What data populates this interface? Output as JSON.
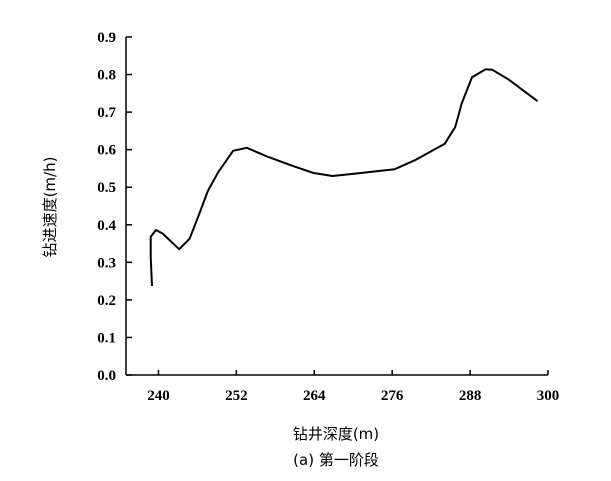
{
  "chart_data": {
    "type": "line",
    "title": "",
    "caption": "(a) 第一阶段",
    "xlabel": "钻井深度(m)",
    "ylabel": "钻进速度(m/h)",
    "xlim": [
      235,
      300
    ],
    "ylim": [
      0,
      0.9
    ],
    "xticks": [
      240,
      252,
      264,
      276,
      288,
      300
    ],
    "yticks": [
      "0.0",
      "0.1",
      "0.2",
      "0.3",
      "0.4",
      "0.5",
      "0.6",
      "0.7",
      "0.8",
      "0.9"
    ],
    "grid": false,
    "line_color": "#000000",
    "x": [
      239.0,
      238.8,
      238.8,
      239.6,
      240.6,
      243.2,
      244.8,
      246.3,
      247.6,
      249.2,
      251.5,
      253.6,
      256.7,
      260.8,
      263.9,
      266.8,
      271.2,
      276.4,
      279.5,
      284.1,
      285.7,
      286.7,
      288.3,
      290.4,
      291.4,
      294.0,
      298.4
    ],
    "y": [
      0.237,
      0.315,
      0.368,
      0.386,
      0.377,
      0.335,
      0.363,
      0.43,
      0.49,
      0.54,
      0.597,
      0.605,
      0.582,
      0.556,
      0.538,
      0.53,
      0.538,
      0.548,
      0.572,
      0.616,
      0.66,
      0.723,
      0.793,
      0.814,
      0.813,
      0.786,
      0.729
    ]
  }
}
